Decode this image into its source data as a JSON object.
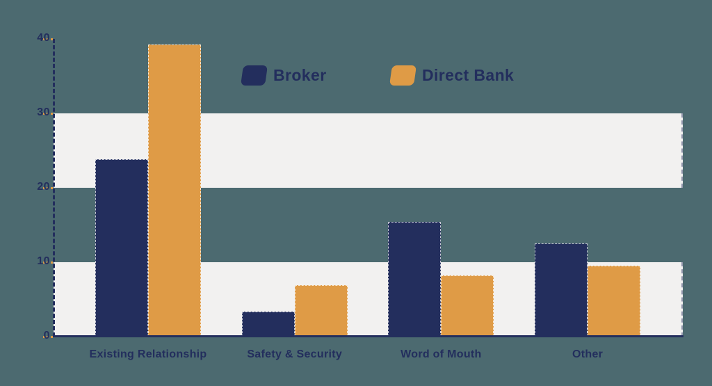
{
  "chart_data": {
    "type": "bar",
    "title": "",
    "categories": [
      "Existing Relationship",
      "Safety & Security",
      "Word of Mouth",
      "Other"
    ],
    "series": [
      {
        "name": "Broker",
        "color": "#232e5d",
        "values": [
          23.8,
          3.4,
          15.4,
          12.5
        ]
      },
      {
        "name": "Direct Bank",
        "color": "#df9b46",
        "values": [
          39.3,
          6.9,
          8.2,
          9.5
        ]
      }
    ],
    "xlabel": "",
    "ylabel": "",
    "ylim": [
      0,
      40
    ],
    "yticks": [
      0,
      10,
      20,
      30,
      40
    ],
    "grid_bands": [
      [
        0,
        10
      ],
      [
        20,
        30
      ]
    ],
    "legend_position": "top-center-inside"
  },
  "colors": {
    "background": "#4c6a70",
    "band": "#f2f1f0",
    "axis": "#232e5d",
    "tick_mark": "#df9b46",
    "text": "#232e5d"
  }
}
